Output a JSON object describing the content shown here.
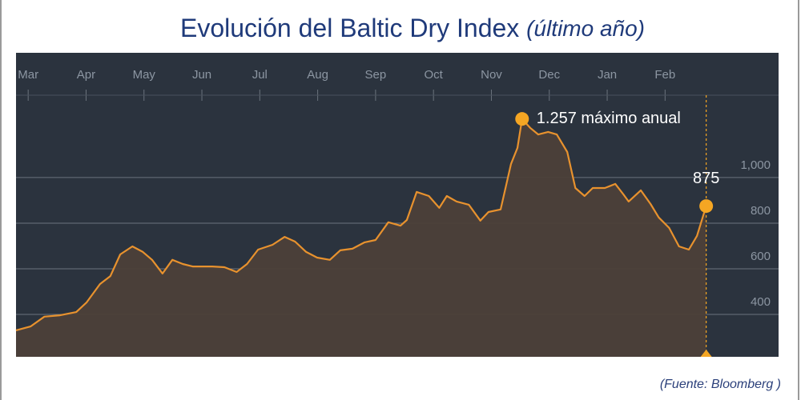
{
  "chart_data": {
    "type": "area",
    "title": "Evolución del Baltic Dry Index",
    "subtitle": "(último año)",
    "source": "(Fuente: Bloomberg )",
    "color": "#e8922e",
    "xlim": [
      -0.21,
      12.96
    ],
    "xticks": [
      {
        "value": 0,
        "label": "Mar"
      },
      {
        "value": 1,
        "label": "Apr"
      },
      {
        "value": 2,
        "label": "May"
      },
      {
        "value": 3,
        "label": "Jun"
      },
      {
        "value": 4,
        "label": "Jul"
      },
      {
        "value": 5,
        "label": "Aug"
      },
      {
        "value": 6,
        "label": "Sep"
      },
      {
        "value": 7,
        "label": "Oct"
      },
      {
        "value": 8,
        "label": "Nov"
      },
      {
        "value": 9,
        "label": "Dec"
      },
      {
        "value": 10,
        "label": "Jan"
      },
      {
        "value": 11,
        "label": "Feb"
      }
    ],
    "ylim": [
      214,
      1547
    ],
    "yticks": [
      400,
      600,
      800,
      {
        "value": 1000,
        "label": "1,000"
      }
    ],
    "grid": true,
    "x": [
      -0.21,
      0.04,
      0.28,
      0.55,
      0.83,
      1.01,
      1.24,
      1.42,
      1.59,
      1.8,
      1.98,
      2.14,
      2.32,
      2.49,
      2.67,
      2.84,
      3.0,
      3.18,
      3.39,
      3.6,
      3.78,
      3.97,
      4.22,
      4.43,
      4.61,
      4.8,
      4.99,
      5.21,
      5.39,
      5.6,
      5.81,
      6.0,
      6.22,
      6.43,
      6.54,
      6.71,
      6.92,
      7.1,
      7.23,
      7.4,
      7.61,
      7.81,
      7.95,
      8.16,
      8.34,
      8.45,
      8.53,
      8.67,
      8.81,
      8.98,
      9.13,
      9.31,
      9.45,
      9.61,
      9.75,
      9.96,
      10.14,
      10.28,
      10.37,
      10.58,
      10.75,
      10.89,
      11.07,
      11.24,
      11.41,
      11.55,
      11.71
    ],
    "values": [
      330,
      347,
      390,
      396,
      410,
      453,
      533,
      568,
      663,
      698,
      674,
      639,
      579,
      639,
      621,
      610,
      610,
      610,
      607,
      586,
      621,
      684,
      705,
      740,
      719,
      674,
      649,
      639,
      681,
      688,
      716,
      726,
      804,
      789,
      814,
      937,
      919,
      867,
      919,
      895,
      881,
      811,
      849,
      860,
      1060,
      1130,
      1257,
      1218,
      1189,
      1200,
      1189,
      1112,
      954,
      919,
      954,
      954,
      972,
      926,
      895,
      944,
      884,
      825,
      779,
      698,
      684,
      744,
      875
    ],
    "value_labels": [
      null,
      null,
      null,
      null,
      null,
      null,
      null,
      null,
      null,
      null,
      null,
      null,
      null,
      null,
      null,
      null,
      null,
      null,
      null,
      null,
      null,
      null,
      null,
      null,
      null,
      null,
      null,
      null,
      null,
      null,
      null,
      null,
      null,
      null,
      null,
      null,
      null,
      null,
      null,
      null,
      null,
      null,
      null,
      null,
      null,
      null,
      "1.257 máximo anual",
      null,
      null,
      null,
      null,
      null,
      null,
      null,
      null,
      null,
      null,
      null,
      null,
      null,
      null,
      null,
      null,
      null,
      null,
      null,
      "875"
    ]
  }
}
